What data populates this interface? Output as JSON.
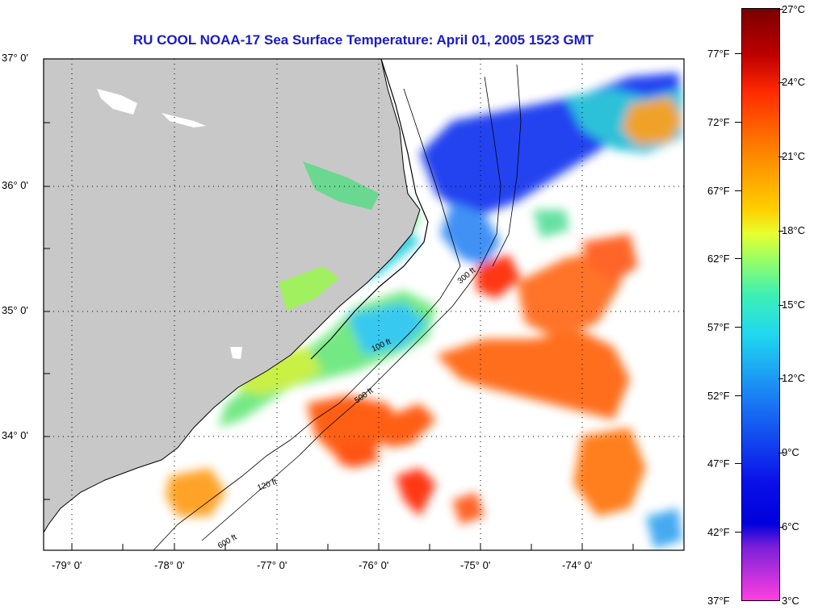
{
  "title": "RU COOL  NOAA-17  Sea Surface Temperature:  April 01, 2005 1523 GMT",
  "latitude_labels": [
    "37° 0'",
    "36° 0'",
    "35° 0'",
    "34° 0'"
  ],
  "longitude_labels": [
    "-79° 0'",
    "-78° 0'",
    "-77° 0'",
    "-76° 0'",
    "-75° 0'",
    "-74° 0'"
  ],
  "colorbar": {
    "celsius_labels": [
      "27°C",
      "24°C",
      "21°C",
      "18°C",
      "15°C",
      "12°C",
      "9°C",
      "6°C",
      "3°C"
    ],
    "fahrenheit_labels": [
      "77°F",
      "72°F",
      "67°F",
      "62°F",
      "57°F",
      "52°F",
      "47°F",
      "42°F",
      "37°F"
    ]
  },
  "isobath_labels": [
    "100 ft",
    "120 ft",
    "300 ft",
    "500 ft",
    "600 ft"
  ],
  "colors": {
    "land": "#c8c8c8",
    "title": "#1a1acc",
    "no_data": "#ffffff"
  }
}
